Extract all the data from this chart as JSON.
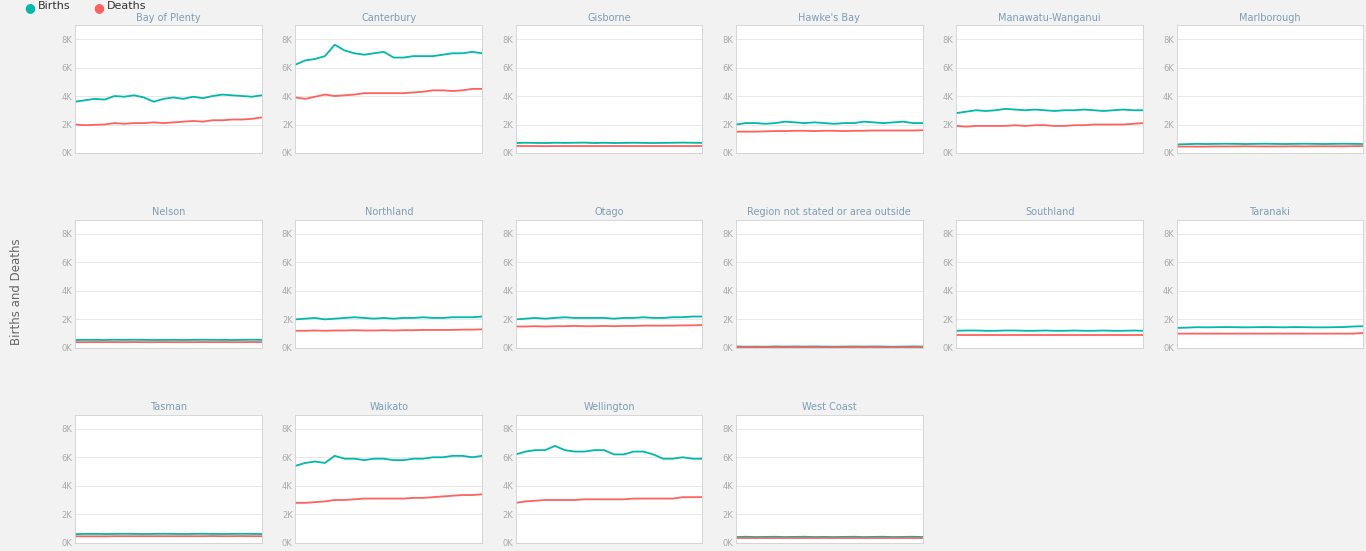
{
  "regions": [
    "Bay of Plenty",
    "Canterbury",
    "Gisborne",
    "Hawke's Bay",
    "Manawatu-Wanganui",
    "Marlborough",
    "Nelson",
    "Northland",
    "Otago",
    "Region not stated or area outside",
    "Southland",
    "Taranaki",
    "Tasman",
    "Waikato",
    "Wellington",
    "West Coast"
  ],
  "row_counts": [
    6,
    6,
    4
  ],
  "births_color": "#01B8AA",
  "deaths_color": "#FD625E",
  "fig_bg": "#F2F2F2",
  "panel_bg": "#FFFFFF",
  "panel_border": "#D0D0D0",
  "title_color": "#7B9EB5",
  "grid_color": "#E8E8E8",
  "tick_color": "#AAAAAA",
  "ylabel": "Births and Deaths",
  "ylim": [
    0,
    9000
  ],
  "yticks": [
    0,
    2000,
    4000,
    6000,
    8000
  ],
  "ytick_labels": [
    "0K",
    "2K",
    "4K",
    "6K",
    "8K"
  ],
  "legend_births": "Births",
  "legend_deaths": "Deaths",
  "legend_births_color": "#01B8AA",
  "legend_deaths_color": "#FD625E",
  "births": {
    "Bay of Plenty": [
      3600,
      3700,
      3800,
      3750,
      4000,
      3950,
      4050,
      3900,
      3600,
      3800,
      3900,
      3800,
      3950,
      3850,
      4000,
      4100,
      4050,
      4000,
      3950,
      4050
    ],
    "Canterbury": [
      6200,
      6500,
      6600,
      6800,
      7600,
      7200,
      7000,
      6900,
      7000,
      7100,
      6700,
      6700,
      6800,
      6800,
      6800,
      6900,
      7000,
      7000,
      7100,
      7000
    ],
    "Gisborne": [
      700,
      720,
      710,
      700,
      720,
      710,
      720,
      730,
      700,
      720,
      700,
      710,
      720,
      710,
      700,
      710,
      720,
      730,
      720,
      710
    ],
    "Hawke's Bay": [
      2000,
      2100,
      2100,
      2050,
      2100,
      2200,
      2150,
      2100,
      2150,
      2100,
      2050,
      2100,
      2100,
      2200,
      2150,
      2100,
      2150,
      2200,
      2100,
      2100
    ],
    "Manawatu-Wanganui": [
      2800,
      2900,
      3000,
      2950,
      3000,
      3100,
      3050,
      3000,
      3050,
      3000,
      2950,
      3000,
      3000,
      3050,
      3000,
      2950,
      3000,
      3050,
      3000,
      3000
    ],
    "Marlborough": [
      600,
      620,
      640,
      630,
      640,
      650,
      640,
      630,
      640,
      650,
      640,
      630,
      640,
      650,
      640,
      630,
      640,
      650,
      640,
      630
    ],
    "Nelson": [
      550,
      560,
      560,
      550,
      570,
      560,
      570,
      560,
      550,
      560,
      560,
      550,
      560,
      570,
      560,
      560,
      550,
      560,
      570,
      560
    ],
    "Northland": [
      2000,
      2050,
      2100,
      2000,
      2050,
      2100,
      2150,
      2100,
      2050,
      2100,
      2050,
      2100,
      2100,
      2150,
      2100,
      2100,
      2150,
      2150,
      2150,
      2200
    ],
    "Otago": [
      2000,
      2050,
      2100,
      2050,
      2100,
      2150,
      2100,
      2100,
      2100,
      2100,
      2050,
      2100,
      2100,
      2150,
      2100,
      2100,
      2150,
      2150,
      2200,
      2200
    ],
    "Region not stated or area outside": [
      100,
      80,
      90,
      80,
      100,
      90,
      100,
      90,
      100,
      90,
      80,
      90,
      100,
      90,
      100,
      90,
      80,
      90,
      100,
      90
    ],
    "Southland": [
      1200,
      1220,
      1220,
      1200,
      1200,
      1220,
      1220,
      1200,
      1200,
      1220,
      1200,
      1200,
      1220,
      1200,
      1200,
      1220,
      1200,
      1200,
      1220,
      1200
    ],
    "Taranaki": [
      1400,
      1420,
      1450,
      1440,
      1450,
      1460,
      1450,
      1440,
      1450,
      1460,
      1450,
      1440,
      1460,
      1450,
      1440,
      1440,
      1450,
      1460,
      1500,
      1520
    ],
    "Tasman": [
      600,
      620,
      620,
      610,
      620,
      630,
      620,
      610,
      620,
      630,
      620,
      610,
      620,
      630,
      620,
      610,
      620,
      630,
      620,
      610
    ],
    "Waikato": [
      5400,
      5600,
      5700,
      5600,
      6100,
      5900,
      5900,
      5800,
      5900,
      5900,
      5800,
      5800,
      5900,
      5900,
      6000,
      6000,
      6100,
      6100,
      6000,
      6100
    ],
    "Wellington": [
      6200,
      6400,
      6500,
      6500,
      6800,
      6500,
      6400,
      6400,
      6500,
      6500,
      6200,
      6200,
      6400,
      6400,
      6200,
      5900,
      5900,
      6000,
      5900,
      5900
    ],
    "West Coast": [
      400,
      420,
      400,
      410,
      420,
      400,
      410,
      420,
      400,
      410,
      400,
      410,
      420,
      400,
      410,
      420,
      400,
      410,
      420,
      400
    ]
  },
  "deaths": {
    "Bay of Plenty": [
      2000,
      1950,
      1980,
      2000,
      2100,
      2050,
      2100,
      2100,
      2150,
      2100,
      2150,
      2200,
      2250,
      2200,
      2300,
      2300,
      2350,
      2350,
      2400,
      2500
    ],
    "Canterbury": [
      3900,
      3800,
      3950,
      4100,
      4000,
      4050,
      4100,
      4200,
      4200,
      4200,
      4200,
      4200,
      4250,
      4300,
      4400,
      4400,
      4350,
      4400,
      4500,
      4500
    ],
    "Gisborne": [
      500,
      490,
      490,
      480,
      490,
      490,
      490,
      490,
      490,
      490,
      490,
      490,
      490,
      490,
      490,
      490,
      490,
      490,
      490,
      490
    ],
    "Hawke's Bay": [
      1500,
      1500,
      1500,
      1520,
      1540,
      1540,
      1560,
      1560,
      1540,
      1560,
      1560,
      1540,
      1560,
      1560,
      1580,
      1580,
      1580,
      1580,
      1580,
      1600
    ],
    "Manawatu-Wanganui": [
      1900,
      1850,
      1900,
      1900,
      1900,
      1900,
      1950,
      1900,
      1950,
      1950,
      1900,
      1900,
      1950,
      1950,
      2000,
      2000,
      2000,
      2000,
      2050,
      2100
    ],
    "Marlborough": [
      450,
      450,
      450,
      450,
      460,
      460,
      460,
      470,
      460,
      460,
      460,
      460,
      470,
      460,
      470,
      470,
      470,
      470,
      480,
      480
    ],
    "Nelson": [
      400,
      400,
      410,
      400,
      410,
      400,
      410,
      400,
      400,
      410,
      400,
      400,
      400,
      410,
      400,
      410,
      400,
      400,
      410,
      400
    ],
    "Northland": [
      1200,
      1200,
      1220,
      1200,
      1220,
      1220,
      1240,
      1220,
      1220,
      1240,
      1220,
      1240,
      1240,
      1260,
      1260,
      1260,
      1260,
      1280,
      1280,
      1300
    ],
    "Otago": [
      1500,
      1500,
      1520,
      1500,
      1520,
      1520,
      1540,
      1520,
      1520,
      1540,
      1520,
      1540,
      1540,
      1560,
      1560,
      1560,
      1560,
      1580,
      1580,
      1600
    ],
    "Region not stated or area outside": [
      50,
      40,
      50,
      40,
      50,
      40,
      50,
      40,
      50,
      40,
      40,
      40,
      50,
      40,
      50,
      40,
      40,
      40,
      50,
      40
    ],
    "Southland": [
      900,
      900,
      900,
      900,
      900,
      900,
      900,
      900,
      900,
      900,
      900,
      900,
      900,
      900,
      900,
      900,
      900,
      900,
      900,
      900
    ],
    "Taranaki": [
      1000,
      1000,
      1000,
      1000,
      1000,
      1000,
      1000,
      1000,
      1000,
      1000,
      1000,
      1000,
      1000,
      1000,
      1000,
      1000,
      1000,
      1000,
      1000,
      1050
    ],
    "Tasman": [
      450,
      450,
      450,
      450,
      460,
      460,
      460,
      460,
      460,
      460,
      460,
      460,
      460,
      460,
      470,
      460,
      460,
      470,
      460,
      460
    ],
    "Waikato": [
      2800,
      2800,
      2850,
      2900,
      3000,
      3000,
      3050,
      3100,
      3100,
      3100,
      3100,
      3100,
      3150,
      3150,
      3200,
      3250,
      3300,
      3350,
      3350,
      3400
    ],
    "Wellington": [
      2800,
      2900,
      2950,
      3000,
      3000,
      3000,
      3000,
      3050,
      3050,
      3050,
      3050,
      3050,
      3100,
      3100,
      3100,
      3100,
      3100,
      3200,
      3200,
      3200
    ],
    "West Coast": [
      300,
      300,
      300,
      300,
      300,
      300,
      300,
      300,
      300,
      300,
      300,
      300,
      300,
      300,
      300,
      300,
      300,
      300,
      300,
      300
    ]
  }
}
